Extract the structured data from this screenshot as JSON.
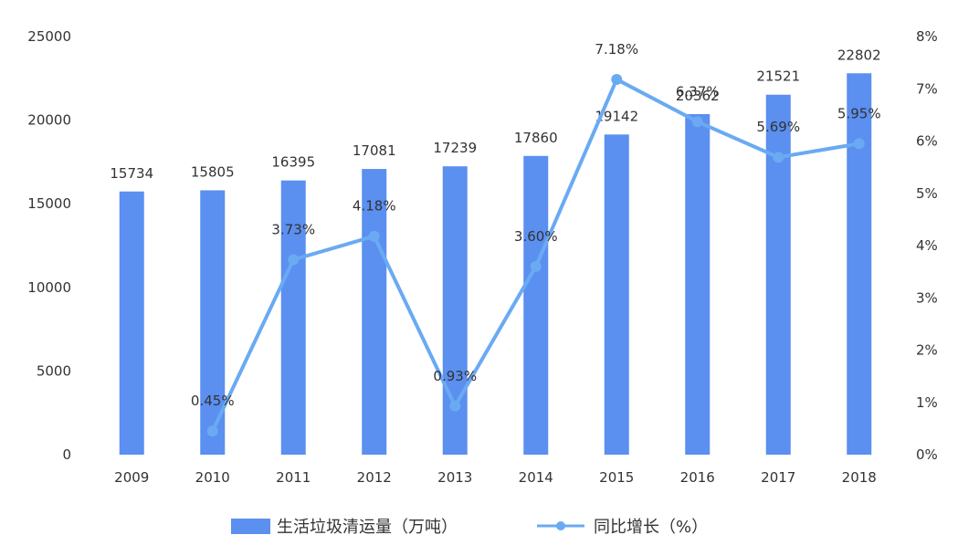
{
  "chart_data": {
    "type": "bar+line",
    "categories": [
      "2009",
      "2010",
      "2011",
      "2012",
      "2013",
      "2014",
      "2015",
      "2016",
      "2017",
      "2018"
    ],
    "series": [
      {
        "name": "生活垃圾清运量（万吨）",
        "type": "bar",
        "axis": "left",
        "color": "#5b8ff0",
        "values": [
          15734,
          15805,
          16395,
          17081,
          17239,
          17860,
          19142,
          20362,
          21521,
          22802
        ],
        "labels": [
          "15734",
          "15805",
          "16395",
          "17081",
          "17239",
          "17860",
          "19142",
          "20362",
          "21521",
          "22802"
        ]
      },
      {
        "name": "同比增长（%）",
        "type": "line",
        "axis": "right",
        "color": "#6aaaf2",
        "x": [
          "2010",
          "2011",
          "2012",
          "2013",
          "2014",
          "2015",
          "2016",
          "2017",
          "2018"
        ],
        "values": [
          0.45,
          3.73,
          4.18,
          0.93,
          3.6,
          7.18,
          6.37,
          5.69,
          5.95
        ],
        "labels": [
          "0.45%",
          "3.73%",
          "4.18%",
          "0.93%",
          "3.60%",
          "7.18%",
          "6.37%",
          "5.69%",
          "5.95%"
        ]
      }
    ],
    "y_left": {
      "min": 0,
      "max": 25000,
      "ticks": [
        "0",
        "5000",
        "10000",
        "15000",
        "20000",
        "25000"
      ]
    },
    "y_right": {
      "min": 0,
      "max": 8,
      "ticks": [
        "0%",
        "1%",
        "2%",
        "3%",
        "4%",
        "5%",
        "6%",
        "7%",
        "8%"
      ]
    },
    "grid": false,
    "legend_position": "bottom-center"
  }
}
